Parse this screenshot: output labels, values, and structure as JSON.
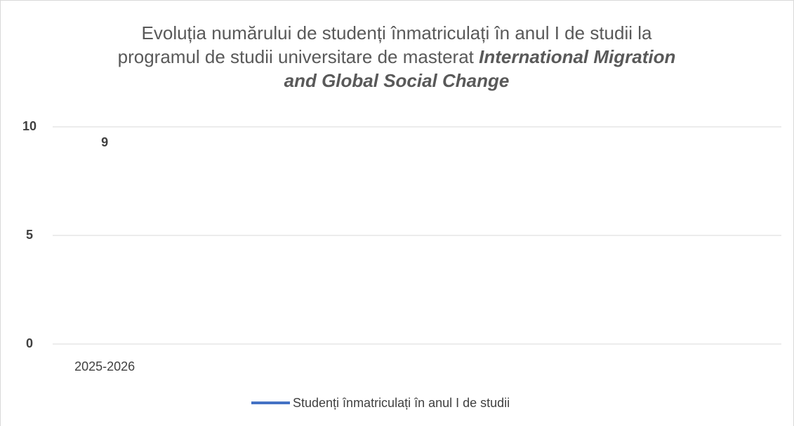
{
  "chart_data": {
    "type": "line",
    "title": [
      "Evoluția numărului de studenți înmatriculați în anul I de studii la programul de studii universitare de masterat",
      "International Migration and Global Social Change"
    ],
    "categories": [
      "2025-2026",
      null,
      null,
      null,
      null,
      null,
      null
    ],
    "series": [
      {
        "name": "Studenți înmatriculați în anul I de studii",
        "color": "#4472c4",
        "values": [
          9,
          null,
          null,
          null,
          null,
          null,
          null
        ]
      }
    ],
    "ylim": [
      0,
      10
    ],
    "yticks": [
      0,
      5,
      10
    ],
    "grid": true,
    "legend": "bottom",
    "data_labels": true
  }
}
